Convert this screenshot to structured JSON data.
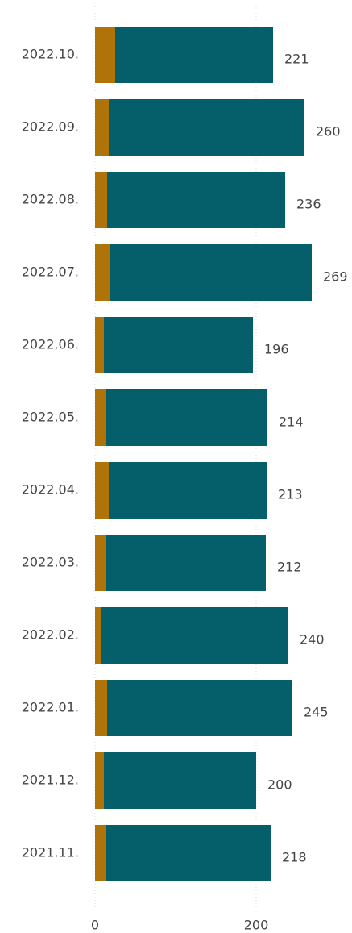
{
  "chart_data": {
    "type": "stacked-barh",
    "categories": [
      "2022.10.",
      "2022.09.",
      "2022.08.",
      "2022.07.",
      "2022.06.",
      "2022.05.",
      "2022.04.",
      "2022.03.",
      "2022.02.",
      "2022.01.",
      "2021.12.",
      "2021.11."
    ],
    "series": [
      {
        "color": "#b0730a",
        "values": [
          25,
          17,
          15,
          18,
          11,
          13,
          17,
          13,
          8,
          15,
          11,
          13
        ]
      },
      {
        "color": "#045f6b",
        "values": [
          196,
          243,
          221,
          251,
          185,
          201,
          196,
          199,
          232,
          230,
          189,
          205
        ]
      }
    ],
    "totals": [
      221,
      260,
      236,
      269,
      196,
      214,
      213,
      212,
      240,
      245,
      200,
      218
    ],
    "xlim": [
      0,
      300
    ],
    "xticks": [
      0,
      200
    ],
    "grid": true
  }
}
